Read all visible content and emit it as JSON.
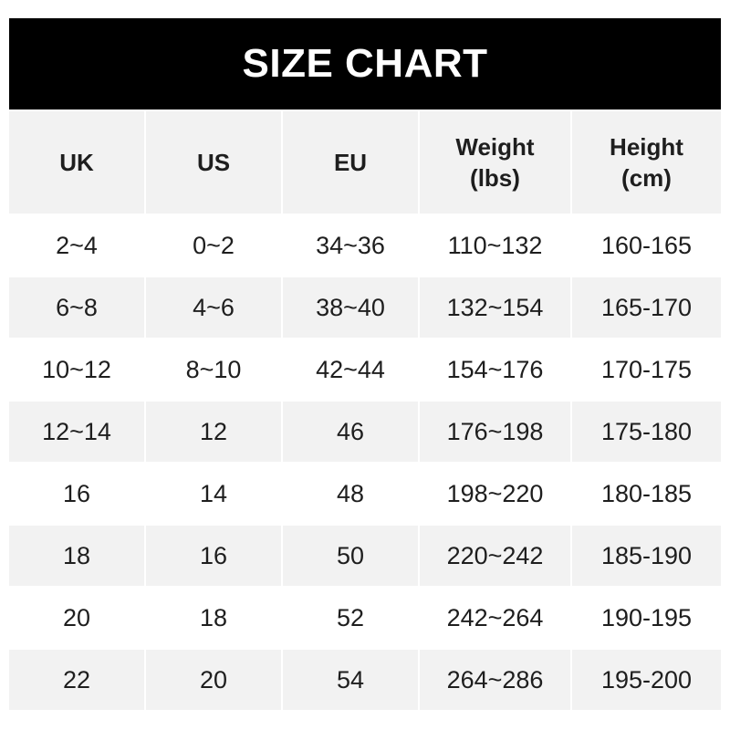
{
  "title": "SIZE CHART",
  "columns": [
    "UK",
    "US",
    "EU",
    "Weight\n(lbs)",
    "Height\n(cm)"
  ],
  "rows": [
    [
      "2~4",
      "0~2",
      "34~36",
      "110~132",
      "160-165"
    ],
    [
      "6~8",
      "4~6",
      "38~40",
      "132~154",
      "165-170"
    ],
    [
      "10~12",
      "8~10",
      "42~44",
      "154~176",
      "170-175"
    ],
    [
      "12~14",
      "12",
      "46",
      "176~198",
      "175-180"
    ],
    [
      "16",
      "14",
      "48",
      "198~220",
      "180-185"
    ],
    [
      "18",
      "16",
      "50",
      "220~242",
      "185-190"
    ],
    [
      "20",
      "18",
      "52",
      "242~264",
      "190-195"
    ],
    [
      "22",
      "20",
      "54",
      "264~286",
      "195-200"
    ]
  ],
  "colors": {
    "header_bg": "#000000",
    "stripe_bg": "#f2f2f2",
    "text": "#1e1e1e"
  }
}
